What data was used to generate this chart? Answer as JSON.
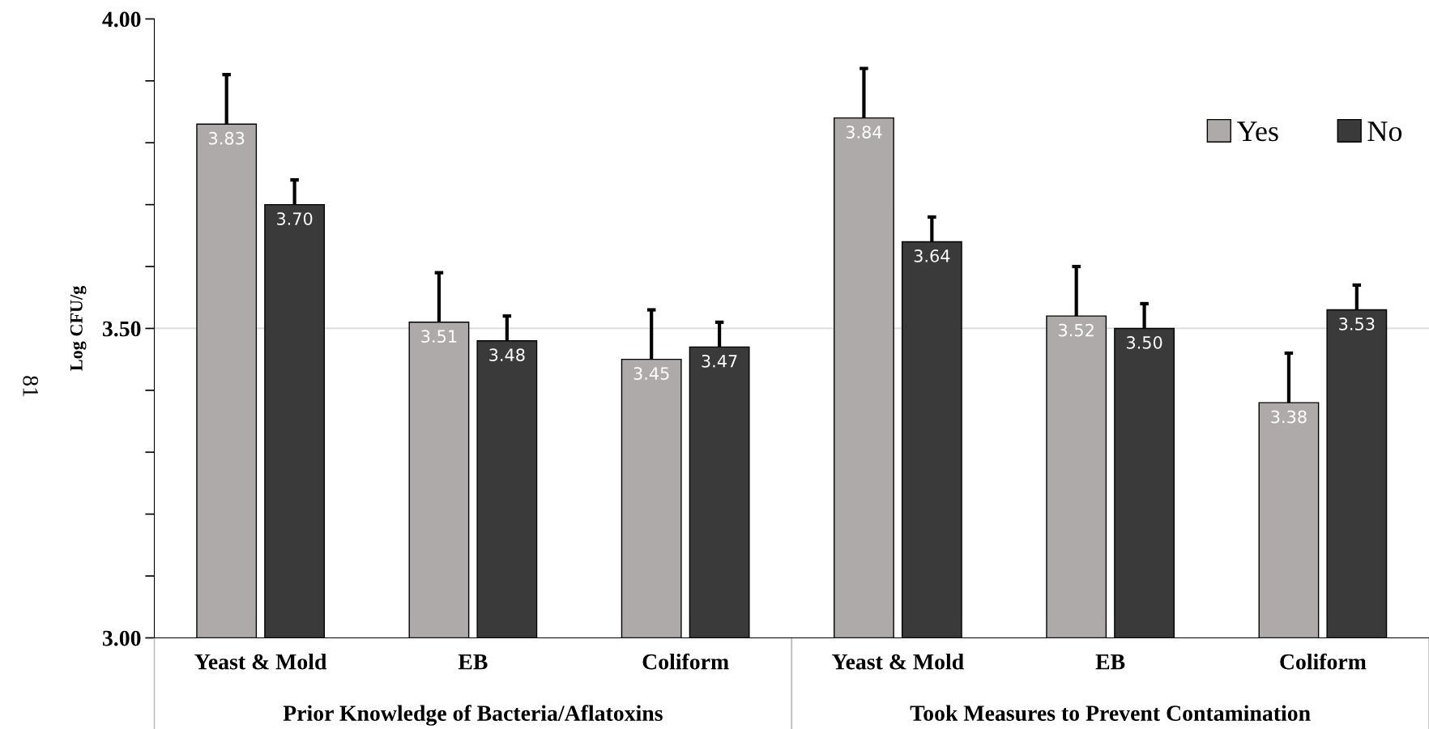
{
  "chart_data": {
    "type": "bar",
    "ylabel": "Log CFU/g",
    "categories": [
      "Yeast & Mold",
      "EB",
      "Coliform",
      "Yeast & Mold",
      "EB",
      "Coliform"
    ],
    "series": [
      {
        "name": "Yes",
        "color": "#aeaaaa",
        "values": [
          3.83,
          3.51,
          3.45,
          3.84,
          3.52,
          3.38
        ],
        "value_labels": [
          "3.83",
          "3.51",
          "3.45",
          "3.84",
          "3.52",
          "3.38"
        ],
        "errors": [
          [
            3.83,
            3.91
          ],
          [
            3.51,
            3.59
          ],
          [
            3.45,
            3.53
          ],
          [
            3.84,
            3.92
          ],
          [
            3.52,
            3.6
          ],
          [
            3.38,
            3.46
          ]
        ]
      },
      {
        "name": "No",
        "color": "#3a3a3a",
        "values": [
          3.7,
          3.48,
          3.47,
          3.64,
          3.5,
          3.53
        ],
        "value_labels": [
          "3.70",
          "3.48",
          "3.47",
          "3.64",
          "3.50",
          "3.53"
        ],
        "errors": [
          [
            3.7,
            3.74
          ],
          [
            3.48,
            3.52
          ],
          [
            3.47,
            3.51
          ],
          [
            3.64,
            3.68
          ],
          [
            3.5,
            3.54
          ],
          [
            3.53,
            3.57
          ]
        ]
      }
    ],
    "ylim": [
      3.0,
      4.0
    ],
    "yticks": [
      {
        "value": 3.0,
        "label": "3.00"
      },
      {
        "value": 3.1,
        "label": null
      },
      {
        "value": 3.2,
        "label": null
      },
      {
        "value": 3.3,
        "label": null
      },
      {
        "value": 3.4,
        "label": null
      },
      {
        "value": 3.5,
        "label": "3.50"
      },
      {
        "value": 3.6,
        "label": null
      },
      {
        "value": 3.7,
        "label": null
      },
      {
        "value": 3.8,
        "label": null
      },
      {
        "value": 3.9,
        "label": null
      },
      {
        "value": 4.0,
        "label": "4.00"
      }
    ],
    "ref_lines": [
      {
        "axis": "y",
        "value": 3.5,
        "color": "#d9d9d9"
      }
    ],
    "legend": "top right",
    "annotations": [
      "Prior Knowledge of Bacteria/Aflatoxins",
      "Took Measures to Prevent Contamination",
      "81"
    ]
  }
}
